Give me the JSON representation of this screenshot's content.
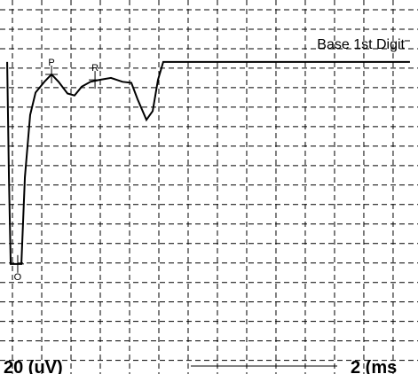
{
  "chart_data": {
    "type": "line",
    "title": "Base 1st Digit",
    "x": [
      -0.36,
      -0.24,
      -0.12,
      0.61,
      0.85,
      1.21,
      1.58,
      2.18,
      2.67,
      3.15,
      3.76,
      4.24,
      4.73,
      5.33,
      5.94,
      6.73,
      7.52,
      8.12,
      8.55,
      9.15,
      9.58,
      9.94,
      10.3,
      27.15
    ],
    "values": [
      6.4,
      -112,
      -201,
      -201,
      -112,
      -48,
      -25,
      -14,
      -6.4,
      -14,
      -26,
      -28,
      -19,
      -14,
      -12,
      -10,
      -14,
      -15,
      -32,
      -53,
      -44,
      -12,
      6.4,
      6.4
    ],
    "color": "#000000",
    "xlim": [
      -0.85,
      27.7
    ],
    "ylim": [
      -314,
      70
    ],
    "grid": true,
    "scale_y": {
      "value": 20,
      "label": "20  (uV)"
    },
    "scale_x": {
      "value": 2,
      "label": "2  (ms"
    },
    "annotations": [
      {
        "label": "P",
        "x": 2.67,
        "y": -6.4
      },
      {
        "label": "R",
        "x": 5.64,
        "y": -12
      },
      {
        "label": "O",
        "x": 0.36,
        "y": -201
      }
    ]
  }
}
